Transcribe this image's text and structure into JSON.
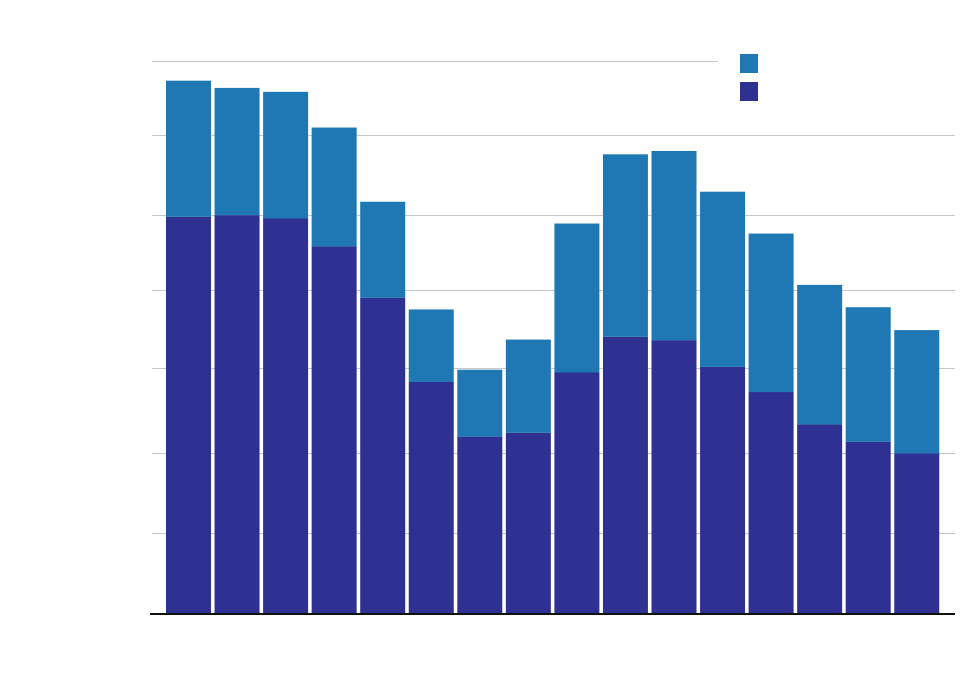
{
  "colors": {
    "series_bottom": "#2e3192",
    "series_top": "#1f78b4",
    "grid": "#c8c8c8",
    "axis": "#111111",
    "background": "#ffffff"
  },
  "chart_data": {
    "type": "bar",
    "stacked": true,
    "title": "",
    "xlabel": "",
    "ylabel": "",
    "ylim": [
      0,
      100
    ],
    "grid": true,
    "legend_position": "top-right",
    "categories": [
      "",
      "",
      "",
      "",
      "",
      "",
      "",
      "",
      "",
      "",
      "",
      "",
      "",
      "",
      "",
      ""
    ],
    "series": [
      {
        "color_key": "series_bottom",
        "values": [
          71,
          71.3,
          70.7,
          65.7,
          56.5,
          41.4,
          31.6,
          32.3,
          43.1,
          49.5,
          48.9,
          44.1,
          39.6,
          33.8,
          30.7,
          28.6
        ]
      },
      {
        "color_key": "series_top",
        "values": [
          24.4,
          22.8,
          22.7,
          21.3,
          17.2,
          13,
          12,
          16.7,
          26.7,
          32.7,
          33.9,
          31.4,
          28.4,
          25,
          24.1,
          22.1
        ]
      }
    ]
  }
}
